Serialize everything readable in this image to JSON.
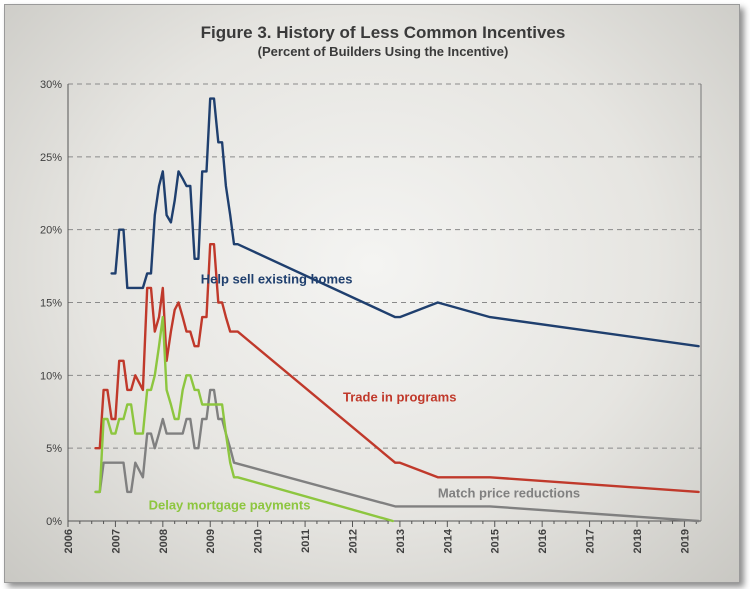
{
  "chart_data": {
    "type": "line",
    "title": "Figure 3.  History of Less Common Incentives",
    "subtitle": "(Percent of Builders Using the Incentive)",
    "xlabel": "",
    "ylabel": "",
    "xlim": [
      2006,
      2019.35
    ],
    "ylim": [
      0,
      30
    ],
    "x_ticks": [
      "2006",
      "2007",
      "2008",
      "2009",
      "2010",
      "2011",
      "2012",
      "2013",
      "2014",
      "2015",
      "2016",
      "2017",
      "2018",
      "2019"
    ],
    "y_ticks": [
      "0%",
      "5%",
      "10%",
      "15%",
      "20%",
      "25%",
      "30%"
    ],
    "grid": "horizontal dashed",
    "legend": "inline labels",
    "series": [
      {
        "name": "Help sell existing homes",
        "color": "#1f3f6e",
        "label_at": [
          2008.8,
          16.3
        ],
        "points": [
          [
            2006.92,
            17
          ],
          [
            2007.0,
            17
          ],
          [
            2007.08,
            20
          ],
          [
            2007.17,
            20
          ],
          [
            2007.25,
            16
          ],
          [
            2007.33,
            16
          ],
          [
            2007.42,
            16
          ],
          [
            2007.5,
            16
          ],
          [
            2007.58,
            16
          ],
          [
            2007.67,
            17
          ],
          [
            2007.75,
            17
          ],
          [
            2007.83,
            21
          ],
          [
            2007.92,
            23
          ],
          [
            2008.0,
            24
          ],
          [
            2008.08,
            21
          ],
          [
            2008.17,
            20.5
          ],
          [
            2008.25,
            22
          ],
          [
            2008.33,
            24
          ],
          [
            2008.42,
            23.5
          ],
          [
            2008.5,
            23
          ],
          [
            2008.58,
            23
          ],
          [
            2008.67,
            18
          ],
          [
            2008.75,
            18
          ],
          [
            2008.83,
            24
          ],
          [
            2008.92,
            24
          ],
          [
            2009.0,
            29
          ],
          [
            2009.08,
            29
          ],
          [
            2009.17,
            26
          ],
          [
            2009.25,
            26
          ],
          [
            2009.33,
            23
          ],
          [
            2009.42,
            21
          ],
          [
            2009.5,
            19
          ],
          [
            2009.58,
            19
          ],
          [
            2012.9,
            14
          ],
          [
            2013.0,
            14
          ],
          [
            2013.8,
            15
          ],
          [
            2014.9,
            14
          ],
          [
            2019.3,
            12
          ]
        ]
      },
      {
        "name": "Trade in programs",
        "color": "#c0392b",
        "label_at": [
          2011.8,
          8.2
        ],
        "points": [
          [
            2006.58,
            5
          ],
          [
            2006.67,
            5
          ],
          [
            2006.75,
            9
          ],
          [
            2006.83,
            9
          ],
          [
            2006.92,
            7
          ],
          [
            2007.0,
            7
          ],
          [
            2007.08,
            11
          ],
          [
            2007.17,
            11
          ],
          [
            2007.25,
            9
          ],
          [
            2007.33,
            9
          ],
          [
            2007.42,
            10
          ],
          [
            2007.5,
            9.5
          ],
          [
            2007.58,
            9
          ],
          [
            2007.67,
            16
          ],
          [
            2007.75,
            16
          ],
          [
            2007.83,
            13
          ],
          [
            2007.92,
            14
          ],
          [
            2008.0,
            16
          ],
          [
            2008.08,
            11
          ],
          [
            2008.17,
            13
          ],
          [
            2008.25,
            14.5
          ],
          [
            2008.33,
            15
          ],
          [
            2008.42,
            14
          ],
          [
            2008.5,
            13
          ],
          [
            2008.58,
            13
          ],
          [
            2008.67,
            12
          ],
          [
            2008.75,
            12
          ],
          [
            2008.83,
            14
          ],
          [
            2008.92,
            14
          ],
          [
            2009.0,
            19
          ],
          [
            2009.08,
            19
          ],
          [
            2009.17,
            15
          ],
          [
            2009.25,
            15
          ],
          [
            2009.33,
            14
          ],
          [
            2009.42,
            13
          ],
          [
            2009.5,
            13
          ],
          [
            2009.58,
            13
          ],
          [
            2012.9,
            4
          ],
          [
            2013.0,
            4
          ],
          [
            2013.8,
            3
          ],
          [
            2014.9,
            3
          ],
          [
            2019.3,
            2
          ]
        ]
      },
      {
        "name": "Match price reductions",
        "color": "#808080",
        "label_at": [
          2013.8,
          1.6
        ],
        "points": [
          [
            2006.58,
            2
          ],
          [
            2006.67,
            2
          ],
          [
            2006.75,
            4
          ],
          [
            2007.17,
            4
          ],
          [
            2007.25,
            2
          ],
          [
            2007.33,
            2
          ],
          [
            2007.42,
            4
          ],
          [
            2007.5,
            3.5
          ],
          [
            2007.58,
            3
          ],
          [
            2007.67,
            6
          ],
          [
            2007.75,
            6
          ],
          [
            2007.83,
            5
          ],
          [
            2007.92,
            6
          ],
          [
            2008.0,
            7
          ],
          [
            2008.08,
            6
          ],
          [
            2008.42,
            6
          ],
          [
            2008.5,
            7
          ],
          [
            2008.58,
            7
          ],
          [
            2008.67,
            5
          ],
          [
            2008.75,
            5
          ],
          [
            2008.83,
            7
          ],
          [
            2008.92,
            7
          ],
          [
            2009.0,
            9
          ],
          [
            2009.08,
            9
          ],
          [
            2009.17,
            7
          ],
          [
            2009.25,
            7
          ],
          [
            2009.33,
            6
          ],
          [
            2009.42,
            5
          ],
          [
            2009.5,
            4
          ],
          [
            2012.9,
            1
          ],
          [
            2014.9,
            1
          ],
          [
            2019.3,
            0
          ]
        ]
      },
      {
        "name": "Delay mortgage payments",
        "color": "#8dc63f",
        "label_at": [
          2007.7,
          0.8
        ],
        "points": [
          [
            2006.58,
            2
          ],
          [
            2006.67,
            2
          ],
          [
            2006.75,
            7
          ],
          [
            2006.83,
            7
          ],
          [
            2006.92,
            6
          ],
          [
            2007.0,
            6
          ],
          [
            2007.08,
            7
          ],
          [
            2007.17,
            7
          ],
          [
            2007.25,
            8
          ],
          [
            2007.33,
            8
          ],
          [
            2007.42,
            6
          ],
          [
            2007.5,
            6
          ],
          [
            2007.58,
            6
          ],
          [
            2007.67,
            9
          ],
          [
            2007.75,
            9
          ],
          [
            2007.83,
            10
          ],
          [
            2007.92,
            12
          ],
          [
            2008.0,
            14
          ],
          [
            2008.08,
            9
          ],
          [
            2008.17,
            8
          ],
          [
            2008.25,
            7
          ],
          [
            2008.33,
            7
          ],
          [
            2008.42,
            9
          ],
          [
            2008.5,
            10
          ],
          [
            2008.58,
            10
          ],
          [
            2008.67,
            9
          ],
          [
            2008.75,
            9
          ],
          [
            2008.83,
            8
          ],
          [
            2008.92,
            8
          ],
          [
            2009.0,
            8
          ],
          [
            2009.08,
            8
          ],
          [
            2009.17,
            8
          ],
          [
            2009.25,
            8
          ],
          [
            2009.33,
            6
          ],
          [
            2009.42,
            4
          ],
          [
            2009.5,
            3
          ],
          [
            2009.58,
            3
          ],
          [
            2012.85,
            0
          ]
        ]
      }
    ]
  }
}
